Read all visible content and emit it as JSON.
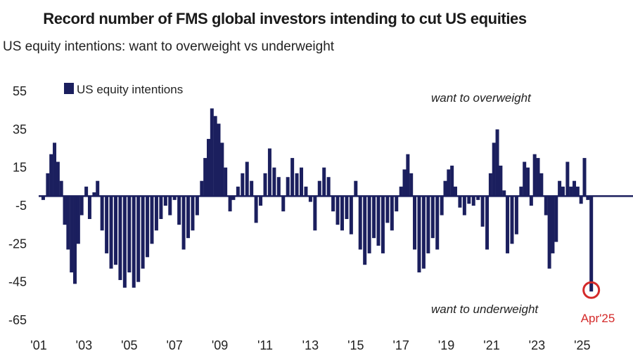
{
  "chart_data": {
    "type": "bar",
    "title": "Record number of FMS global investors intending to cut US equities",
    "subtitle": "US equity intentions: want to overweight vs underweight",
    "legend": "US equity intentions",
    "legend_position": "top-left",
    "annotations": {
      "top": "want to overweight",
      "bottom": "want to underweight",
      "callout": "Apr'25"
    },
    "ylim": [
      -65,
      55
    ],
    "yticks": [
      55,
      35,
      15,
      -5,
      -25,
      -45,
      -65
    ],
    "xlim": [
      2001,
      2026
    ],
    "xticks": [
      "'01",
      "'03",
      "'05",
      "'07",
      "'09",
      "'11",
      "'13",
      "'15",
      "'17",
      "'19",
      "'21",
      "'23",
      "'25"
    ],
    "xtick_years": [
      2001,
      2003,
      2005,
      2007,
      2009,
      2011,
      2013,
      2015,
      2017,
      2019,
      2021,
      2023,
      2025
    ],
    "bar_color": "#1b1f5e",
    "callout_color": "#d42a2a",
    "series": [
      {
        "values": [
          {
            "x": 2001.2,
            "y": -2
          },
          {
            "x": 2001.4,
            "y": 12
          },
          {
            "x": 2001.55,
            "y": 22
          },
          {
            "x": 2001.7,
            "y": 28
          },
          {
            "x": 2001.85,
            "y": 18
          },
          {
            "x": 2002.0,
            "y": 8
          },
          {
            "x": 2002.15,
            "y": -15
          },
          {
            "x": 2002.3,
            "y": -28
          },
          {
            "x": 2002.45,
            "y": -40
          },
          {
            "x": 2002.6,
            "y": -46
          },
          {
            "x": 2002.75,
            "y": -25
          },
          {
            "x": 2002.9,
            "y": -10
          },
          {
            "x": 2003.1,
            "y": 5
          },
          {
            "x": 2003.25,
            "y": -12
          },
          {
            "x": 2003.45,
            "y": 2
          },
          {
            "x": 2003.6,
            "y": 8
          },
          {
            "x": 2003.8,
            "y": -18
          },
          {
            "x": 2004.0,
            "y": -30
          },
          {
            "x": 2004.2,
            "y": -38
          },
          {
            "x": 2004.4,
            "y": -36
          },
          {
            "x": 2004.6,
            "y": -44
          },
          {
            "x": 2004.8,
            "y": -48
          },
          {
            "x": 2005.0,
            "y": -40
          },
          {
            "x": 2005.2,
            "y": -48
          },
          {
            "x": 2005.4,
            "y": -45
          },
          {
            "x": 2005.6,
            "y": -38
          },
          {
            "x": 2005.8,
            "y": -32
          },
          {
            "x": 2006.0,
            "y": -25
          },
          {
            "x": 2006.2,
            "y": -18
          },
          {
            "x": 2006.4,
            "y": -12
          },
          {
            "x": 2006.6,
            "y": -5
          },
          {
            "x": 2006.8,
            "y": -10
          },
          {
            "x": 2007.0,
            "y": -2
          },
          {
            "x": 2007.2,
            "y": -15
          },
          {
            "x": 2007.4,
            "y": -28
          },
          {
            "x": 2007.6,
            "y": -22
          },
          {
            "x": 2007.8,
            "y": -18
          },
          {
            "x": 2008.0,
            "y": -10
          },
          {
            "x": 2008.2,
            "y": 8
          },
          {
            "x": 2008.35,
            "y": 20
          },
          {
            "x": 2008.5,
            "y": 30
          },
          {
            "x": 2008.65,
            "y": 46
          },
          {
            "x": 2008.8,
            "y": 42
          },
          {
            "x": 2008.95,
            "y": 38
          },
          {
            "x": 2009.1,
            "y": 28
          },
          {
            "x": 2009.25,
            "y": 15
          },
          {
            "x": 2009.45,
            "y": -8
          },
          {
            "x": 2009.6,
            "y": -2
          },
          {
            "x": 2009.8,
            "y": 5
          },
          {
            "x": 2010.0,
            "y": 12
          },
          {
            "x": 2010.2,
            "y": 18
          },
          {
            "x": 2010.4,
            "y": 8
          },
          {
            "x": 2010.6,
            "y": -14
          },
          {
            "x": 2010.8,
            "y": -5
          },
          {
            "x": 2011.0,
            "y": 12
          },
          {
            "x": 2011.2,
            "y": 25
          },
          {
            "x": 2011.4,
            "y": 15
          },
          {
            "x": 2011.6,
            "y": 10
          },
          {
            "x": 2011.8,
            "y": -8
          },
          {
            "x": 2012.0,
            "y": 10
          },
          {
            "x": 2012.2,
            "y": 20
          },
          {
            "x": 2012.4,
            "y": 12
          },
          {
            "x": 2012.6,
            "y": 15
          },
          {
            "x": 2012.8,
            "y": 5
          },
          {
            "x": 2013.0,
            "y": -3
          },
          {
            "x": 2013.2,
            "y": -18
          },
          {
            "x": 2013.4,
            "y": 8
          },
          {
            "x": 2013.6,
            "y": 15
          },
          {
            "x": 2013.8,
            "y": 10
          },
          {
            "x": 2014.0,
            "y": -8
          },
          {
            "x": 2014.2,
            "y": -15
          },
          {
            "x": 2014.4,
            "y": -18
          },
          {
            "x": 2014.6,
            "y": -12
          },
          {
            "x": 2014.8,
            "y": -20
          },
          {
            "x": 2015.0,
            "y": 8
          },
          {
            "x": 2015.2,
            "y": -28
          },
          {
            "x": 2015.4,
            "y": -36
          },
          {
            "x": 2015.6,
            "y": -30
          },
          {
            "x": 2015.8,
            "y": -22
          },
          {
            "x": 2016.0,
            "y": -26
          },
          {
            "x": 2016.2,
            "y": -30
          },
          {
            "x": 2016.4,
            "y": -14
          },
          {
            "x": 2016.6,
            "y": -18
          },
          {
            "x": 2016.8,
            "y": -8
          },
          {
            "x": 2017.0,
            "y": 5
          },
          {
            "x": 2017.15,
            "y": 14
          },
          {
            "x": 2017.3,
            "y": 22
          },
          {
            "x": 2017.45,
            "y": 12
          },
          {
            "x": 2017.6,
            "y": -28
          },
          {
            "x": 2017.8,
            "y": -40
          },
          {
            "x": 2018.0,
            "y": -38
          },
          {
            "x": 2018.2,
            "y": -30
          },
          {
            "x": 2018.4,
            "y": -22
          },
          {
            "x": 2018.6,
            "y": -28
          },
          {
            "x": 2018.8,
            "y": -10
          },
          {
            "x": 2018.95,
            "y": 8
          },
          {
            "x": 2019.1,
            "y": 14
          },
          {
            "x": 2019.25,
            "y": 16
          },
          {
            "x": 2019.4,
            "y": 5
          },
          {
            "x": 2019.6,
            "y": -6
          },
          {
            "x": 2019.8,
            "y": -10
          },
          {
            "x": 2020.0,
            "y": -4
          },
          {
            "x": 2020.2,
            "y": -5
          },
          {
            "x": 2020.4,
            "y": -2
          },
          {
            "x": 2020.6,
            "y": -16
          },
          {
            "x": 2020.8,
            "y": -28
          },
          {
            "x": 2020.95,
            "y": 12
          },
          {
            "x": 2021.1,
            "y": 28
          },
          {
            "x": 2021.25,
            "y": 35
          },
          {
            "x": 2021.4,
            "y": 16
          },
          {
            "x": 2021.55,
            "y": 3
          },
          {
            "x": 2021.7,
            "y": -30
          },
          {
            "x": 2021.9,
            "y": -25
          },
          {
            "x": 2022.1,
            "y": -20
          },
          {
            "x": 2022.3,
            "y": 5
          },
          {
            "x": 2022.45,
            "y": 18
          },
          {
            "x": 2022.6,
            "y": 15
          },
          {
            "x": 2022.75,
            "y": -5
          },
          {
            "x": 2022.9,
            "y": 22
          },
          {
            "x": 2023.05,
            "y": 20
          },
          {
            "x": 2023.2,
            "y": 12
          },
          {
            "x": 2023.4,
            "y": -10
          },
          {
            "x": 2023.55,
            "y": -38
          },
          {
            "x": 2023.7,
            "y": -30
          },
          {
            "x": 2023.85,
            "y": -24
          },
          {
            "x": 2024.0,
            "y": 8
          },
          {
            "x": 2024.15,
            "y": 5
          },
          {
            "x": 2024.35,
            "y": 18
          },
          {
            "x": 2024.5,
            "y": 5
          },
          {
            "x": 2024.65,
            "y": 8
          },
          {
            "x": 2024.8,
            "y": 5
          },
          {
            "x": 2024.95,
            "y": -4
          },
          {
            "x": 2025.1,
            "y": 20
          },
          {
            "x": 2025.25,
            "y": -2
          },
          {
            "x": 2025.4,
            "y": -50
          }
        ]
      }
    ]
  }
}
